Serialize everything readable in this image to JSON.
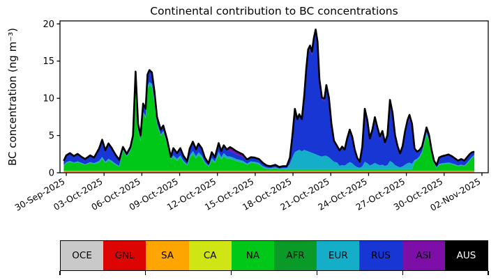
{
  "chart_data": {
    "type": "area",
    "stacked": true,
    "title": "Continental contribution to BC concentrations",
    "ylabel": "BC concentration (ng m⁻³)",
    "xlabel": "",
    "x_unit": "days since 30-Sep-2025 00:00 UTC",
    "xlim": [
      -0.5,
      33.5
    ],
    "ylim": [
      0,
      20.4
    ],
    "grid": false,
    "legend_position": "bottom-bar",
    "outline_color": "#000000",
    "outline_width": 2.6,
    "y_ticks": [
      0,
      5,
      10,
      15,
      20
    ],
    "x_ticks": {
      "positions": [
        0,
        3,
        6,
        9,
        12,
        15,
        18,
        21,
        24,
        27,
        30,
        33
      ],
      "labels": [
        "30-Sep-2025",
        "03-Oct-2025",
        "06-Oct-2025",
        "09-Oct-2025",
        "12-Oct-2025",
        "15-Oct-2025",
        "18-Oct-2025",
        "21-Oct-2025",
        "24-Oct-2025",
        "27-Oct-2025",
        "30-Oct-2025",
        "02-Nov-2025"
      ],
      "rotation_deg": 30
    },
    "x": [
      -0.2,
      0,
      0.3,
      0.6,
      0.9,
      1.2,
      1.5,
      1.9,
      2.2,
      2.6,
      2.85,
      3.1,
      3.35,
      3.6,
      3.9,
      4.2,
      4.5,
      4.8,
      5.1,
      5.3,
      5.5,
      5.7,
      5.9,
      6.1,
      6.3,
      6.45,
      6.6,
      6.8,
      7.0,
      7.2,
      7.5,
      7.7,
      8.0,
      8.3,
      8.5,
      8.8,
      9.05,
      9.3,
      9.6,
      9.8,
      10.05,
      10.3,
      10.5,
      10.75,
      11.0,
      11.3,
      11.55,
      11.8,
      12.1,
      12.3,
      12.5,
      12.75,
      13.0,
      13.25,
      13.5,
      13.75,
      14.0,
      14.35,
      14.65,
      14.95,
      15.3,
      15.6,
      15.9,
      16.2,
      16.6,
      16.9,
      17.2,
      17.5,
      17.75,
      17.95,
      18.15,
      18.35,
      18.5,
      18.7,
      18.9,
      19.05,
      19.2,
      19.35,
      19.5,
      19.65,
      19.8,
      19.95,
      20.1,
      20.3,
      20.5,
      20.65,
      20.85,
      21.05,
      21.25,
      21.5,
      21.7,
      21.9,
      22.1,
      22.3,
      22.5,
      22.7,
      22.9,
      23.1,
      23.3,
      23.5,
      23.7,
      23.9,
      24.1,
      24.3,
      24.5,
      24.7,
      24.9,
      25.1,
      25.3,
      25.5,
      25.7,
      25.9,
      26.1,
      26.3,
      26.5,
      26.7,
      26.9,
      27.1,
      27.25,
      27.45,
      27.65,
      27.85,
      28.05,
      28.25,
      28.45,
      28.6,
      28.8,
      29.0,
      29.2,
      29.4,
      29.6,
      29.85,
      30.1,
      30.35,
      30.6,
      30.85,
      31.1,
      31.35,
      31.6,
      31.8,
      32.0,
      32.2,
      32.4
    ],
    "series": [
      {
        "name": "OCE",
        "color": "#c9c9c9",
        "label_color": "#000000",
        "const": 0.1
      },
      {
        "name": "GNL",
        "color": "#dd0404",
        "label_color": "#000000",
        "const": 0.04
      },
      {
        "name": "SA",
        "color": "#ffa500",
        "label_color": "#000000",
        "const": 0.04
      },
      {
        "name": "CA",
        "color": "#d0e514",
        "label_color": "#000000",
        "const": 0.06
      },
      {
        "name": "NA",
        "color": "#00c818",
        "label_color": "#000000",
        "values": [
          0.65,
          1.05,
          1.2,
          1.0,
          1.15,
          0.95,
          0.8,
          1.05,
          0.9,
          1.1,
          1.6,
          1.05,
          1.4,
          1.15,
          0.8,
          0.55,
          2.7,
          1.9,
          2.7,
          4.05,
          11.3,
          5.3,
          4.05,
          7.7,
          7.1,
          11.0,
          11.5,
          11.25,
          9.1,
          6.15,
          4.7,
          5.15,
          3.6,
          1.55,
          1.75,
          1.35,
          1.75,
          1.15,
          0.7,
          1.7,
          2.25,
          1.65,
          2.1,
          1.75,
          1.0,
          0.55,
          1.4,
          1.05,
          2.1,
          1.5,
          1.95,
          1.6,
          1.6,
          1.45,
          1.3,
          1.2,
          1.1,
          0.8,
          1.05,
          1.0,
          0.85,
          0.4,
          0.25,
          0.22,
          0.3,
          0.18,
          0.22,
          0.22,
          0.2,
          0.2,
          0.2,
          0.2,
          0.2,
          0.2,
          0.2,
          0.2,
          0.2,
          0.2,
          0.2,
          0.2,
          0.2,
          0.2,
          0.2,
          0.2,
          0.2,
          0.2,
          0.2,
          0.2,
          0.2,
          0.2,
          0.2,
          0.2,
          0.2,
          0.2,
          0.2,
          0.2,
          0.2,
          0.2,
          0.2,
          0.2,
          0.2,
          0.2,
          0.2,
          0.2,
          0.2,
          0.2,
          0.2,
          0.2,
          0.2,
          0.2,
          0.2,
          0.2,
          0.2,
          0.2,
          0.2,
          0.2,
          0.2,
          0.2,
          0.2,
          0.2,
          1.2,
          1.4,
          1.8,
          2.4,
          3.8,
          4.8,
          4.0,
          2.3,
          1.0,
          0.35,
          0.8,
          0.85,
          0.9,
          0.95,
          0.85,
          0.75,
          0.6,
          0.7,
          0.6,
          0.9,
          1.3,
          1.7,
          2.0
        ]
      },
      {
        "name": "AFR",
        "color": "#0a9a28",
        "label_color": "#000000",
        "const": 0.04
      },
      {
        "name": "EUR",
        "color": "#14aec8",
        "label_color": "#000000",
        "values": [
          0.07,
          0.1,
          0.1,
          0.1,
          0.1,
          0.1,
          0.05,
          0.1,
          0.1,
          0.2,
          0.25,
          0.15,
          0.2,
          0.2,
          0.15,
          0.1,
          0.1,
          0.07,
          0.1,
          0.15,
          0.4,
          0.2,
          0.15,
          0.25,
          0.25,
          0.4,
          0.4,
          0.4,
          0.3,
          0.2,
          0.15,
          0.2,
          0.13,
          0.06,
          0.3,
          0.25,
          0.3,
          0.2,
          0.13,
          0.3,
          0.4,
          0.3,
          0.35,
          0.3,
          0.2,
          0.1,
          0.3,
          0.2,
          0.45,
          0.3,
          0.4,
          0.35,
          0.3,
          0.3,
          0.25,
          0.25,
          0.25,
          0.15,
          0.2,
          0.2,
          0.2,
          0.2,
          0.15,
          0.12,
          0.16,
          0.1,
          0.12,
          0.12,
          0.7,
          1.6,
          2.3,
          2.5,
          2.6,
          2.4,
          2.6,
          2.5,
          2.4,
          2.3,
          2.2,
          2.1,
          2.0,
          1.9,
          1.8,
          1.7,
          1.8,
          1.8,
          1.6,
          1.3,
          1.0,
          0.9,
          0.45,
          0.55,
          0.47,
          0.74,
          0.95,
          0.8,
          0.47,
          0.27,
          0.18,
          0.36,
          1.0,
          0.8,
          0.5,
          0.64,
          0.84,
          0.67,
          0.53,
          0.61,
          0.43,
          0.55,
          1.1,
          0.9,
          0.55,
          0.37,
          0.25,
          0.37,
          0.61,
          0.8,
          0.88,
          0.73,
          0.25,
          0.2,
          0.17,
          0.2,
          0.25,
          0.3,
          0.25,
          0.15,
          0.08,
          0.05,
          0.12,
          0.14,
          0.14,
          0.15,
          0.14,
          0.12,
          0.1,
          0.11,
          0.1,
          0.1,
          0.12,
          0.12,
          0.12
        ]
      },
      {
        "name": "RUS",
        "color": "#1736d4",
        "label_color": "#000000",
        "values": [
          0.55,
          0.85,
          1.0,
          0.8,
          0.95,
          0.75,
          0.65,
          0.85,
          0.7,
          1.6,
          2.25,
          1.5,
          2.0,
          1.65,
          1.15,
          0.75,
          0.35,
          0.25,
          0.35,
          0.5,
          1.5,
          0.7,
          0.5,
          1.0,
          0.9,
          1.4,
          1.5,
          1.45,
          1.2,
          0.8,
          0.6,
          0.65,
          0.45,
          0.2,
          0.9,
          0.7,
          0.9,
          0.6,
          0.4,
          0.9,
          1.15,
          0.85,
          1.1,
          0.9,
          0.5,
          0.3,
          0.7,
          0.5,
          1.05,
          0.75,
          0.95,
          0.8,
          0.75,
          0.7,
          0.65,
          0.6,
          0.55,
          0.4,
          0.5,
          0.5,
          0.45,
          0.42,
          0.27,
          0.23,
          0.3,
          0.19,
          0.23,
          0.23,
          0.75,
          2.75,
          5.55,
          4.0,
          4.55,
          4.1,
          7.1,
          10.6,
          13.2,
          13.8,
          13.1,
          14.95,
          16.2,
          14.7,
          9.9,
          7.6,
          7.4,
          9.15,
          7.7,
          4.6,
          2.7,
          2.1,
          1.95,
          2.35,
          2.05,
          3.2,
          4.15,
          3.4,
          2.05,
          1.17,
          0.78,
          2.43,
          6.55,
          5.35,
          3.3,
          4.3,
          5.65,
          4.55,
          3.55,
          4.15,
          2.9,
          3.7,
          7.55,
          6.15,
          3.7,
          2.5,
          1.7,
          2.5,
          4.15,
          5.35,
          5.9,
          4.95,
          1.45,
          0.9,
          0.75,
          0.6,
          0.6,
          0.65,
          0.5,
          0.3,
          0.2,
          0.33,
          0.78,
          0.9,
          0.95,
          1.0,
          0.9,
          0.73,
          0.6,
          0.69,
          0.6,
          0.7,
          0.68,
          0.58,
          0.38
        ]
      },
      {
        "name": "ASI",
        "color": "#7d0fa8",
        "label_color": "#000000",
        "values": [
          0.04,
          0.05,
          0.05,
          0.05,
          0.05,
          0.05,
          0.05,
          0.05,
          0.05,
          0.05,
          0.05,
          0.05,
          0.05,
          0.05,
          0.05,
          0.05,
          0.03,
          0.03,
          0.03,
          0.03,
          0.1,
          0.05,
          0.03,
          0.05,
          0.05,
          0.1,
          0.1,
          0.1,
          0.08,
          0.05,
          0.05,
          0.05,
          0.03,
          0.03,
          0.06,
          0.05,
          0.06,
          0.04,
          0.03,
          0.06,
          0.08,
          0.06,
          0.07,
          0.06,
          0.04,
          0.02,
          0.07,
          0.05,
          0.1,
          0.08,
          0.1,
          0.08,
          0.5,
          0.45,
          0.4,
          0.35,
          0.3,
          0.15,
          0.05,
          0.05,
          0.05,
          0.03,
          0.02,
          0.02,
          0.02,
          0.02,
          0.02,
          0.02,
          0.06,
          0.13,
          0.24,
          0.2,
          0.22,
          0.2,
          0.3,
          0.4,
          0.48,
          0.5,
          0.47,
          0.52,
          0.56,
          0.5,
          0.36,
          0.29,
          0.29,
          0.34,
          0.29,
          0.19,
          0.12,
          0.1,
          0.1,
          0.12,
          0.1,
          0.16,
          0.2,
          0.18,
          0.1,
          0.06,
          0.04,
          0.21,
          0.55,
          0.46,
          0.29,
          0.37,
          0.49,
          0.39,
          0.31,
          0.36,
          0.25,
          0.32,
          0.65,
          0.53,
          0.32,
          0.22,
          0.15,
          0.22,
          0.36,
          0.46,
          0.51,
          0.43,
          0.06,
          0.05,
          0.05,
          0.05,
          0.05,
          0.05,
          0.05,
          0.05,
          0.02,
          0.02,
          0.05,
          0.06,
          0.06,
          0.06,
          0.06,
          0.05,
          0.04,
          0.05,
          0.04,
          0.05,
          0.05,
          0.05,
          0.05
        ]
      },
      {
        "name": "AUS",
        "color": "#000000",
        "label_color": "#ffffff",
        "const": 0.01
      }
    ]
  }
}
